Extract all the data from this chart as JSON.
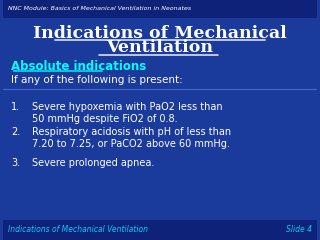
{
  "bg_color": "#1a3a9c",
  "bg_color_top": "#0d2b8a",
  "header_text": "NNC Module: Basics of Mechanical Ventilation in Neonates",
  "title_line1": "Indications of Mechanical",
  "title_line2": "Ventilation",
  "subtitle": "Absolute indications",
  "intro": "If any of the following is present:",
  "items": [
    "Severe hypoxemia with PaO2 less than\n50 mmHg despite FiO2 of 0.8.",
    "Respiratory acidosis with pH of less than\n7.20 to 7.25, or PaCO2 above 60 mmHg.",
    "Severe prolonged apnea."
  ],
  "footer_left": "Indications of Mechanical Ventilation",
  "footer_right": "Slide 4",
  "title_color": "#ffffff",
  "subtitle_color": "#00ffff",
  "body_color": "#ffffff",
  "footer_color": "#00ccff",
  "header_color": "#ffffff",
  "underline_color": "#ffffff",
  "subtitle_underline_color": "#00ffff"
}
